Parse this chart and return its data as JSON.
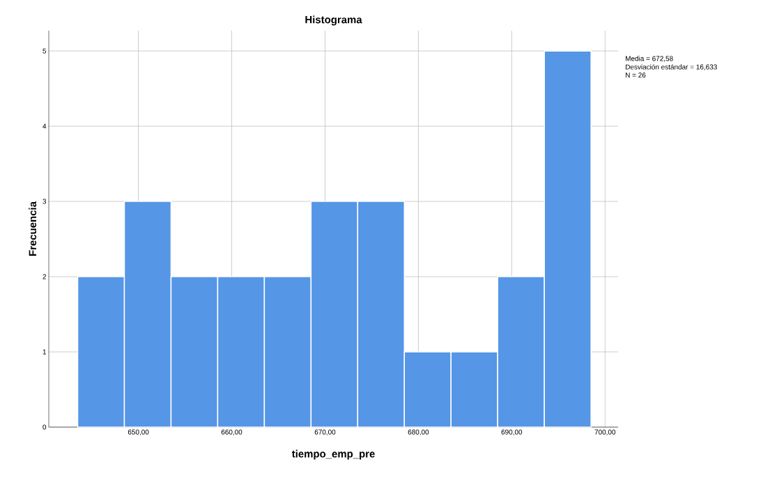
{
  "chart_data": {
    "type": "histogram",
    "title": "Histograma",
    "xlabel": "tiempo_emp_pre",
    "ylabel": "Frecuencia",
    "bins": [
      643.5,
      648.5,
      653.5,
      658.5,
      663.5,
      668.5,
      673.5,
      678.5,
      683.5,
      688.5,
      693.5,
      698.5
    ],
    "values": [
      2,
      3,
      2,
      2,
      2,
      3,
      3,
      1,
      1,
      2,
      5
    ],
    "color": "#5596e6",
    "xlim": [
      640.4,
      701.4
    ],
    "ylim": [
      0,
      5.27
    ],
    "xticks": [
      {
        "value": 650,
        "label": "650,00"
      },
      {
        "value": 660,
        "label": "660,00"
      },
      {
        "value": 670,
        "label": "670,00"
      },
      {
        "value": 680,
        "label": "680,00"
      },
      {
        "value": 690,
        "label": "690,00"
      },
      {
        "value": 700,
        "label": "700,00"
      }
    ],
    "yticks": [
      0,
      1,
      2,
      3,
      4,
      5
    ],
    "grid": true,
    "annotations": [
      "Media = 672,58",
      "Desviación estándar = 16,633",
      "N = 26"
    ]
  }
}
